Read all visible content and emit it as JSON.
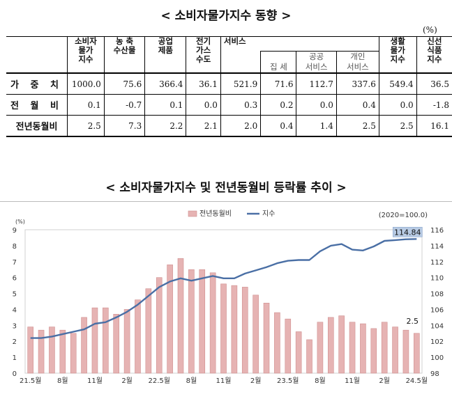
{
  "title1": "< 소비자물가지수 동향 >",
  "unit": "(%)",
  "table": {
    "col_headers": [
      "소비자\n물가\n지수",
      "농 축\n수산물",
      "공업\n제품",
      "전기\n가스\n수도",
      "서비스",
      "생활\n물가\n지수",
      "신선\n식품\n지수"
    ],
    "service_sub": [
      "집 세",
      "공공\n서비스",
      "개인\n서비스"
    ],
    "rows": [
      {
        "label": "가 중 치",
        "values": [
          "1000.0",
          "75.6",
          "366.4",
          "36.1",
          "521.9",
          "71.6",
          "112.7",
          "337.6",
          "549.4",
          "36.5"
        ]
      },
      {
        "label": "전 월 비",
        "values": [
          "0.1",
          "-0.7",
          "0.1",
          "0.0",
          "0.3",
          "0.2",
          "0.0",
          "0.4",
          "0.0",
          "-1.8"
        ]
      },
      {
        "label": "전년동월비",
        "values": [
          "2.5",
          "7.3",
          "2.2",
          "2.1",
          "2.0",
          "0.4",
          "1.4",
          "2.5",
          "2.5",
          "16.1"
        ]
      }
    ]
  },
  "title2": "< 소비자물가지수 및 전년동월비 등락률 추이 >",
  "chart_data": {
    "type": "bar+line",
    "legend": [
      "전년동월비",
      "지수"
    ],
    "base_note": "(2020=100.0)",
    "left_axis_label": "(%)",
    "left_ylim": [
      0,
      9
    ],
    "left_ticks": [
      "0",
      "1",
      "2",
      "3",
      "4",
      "5",
      "6",
      "7",
      "8",
      "9"
    ],
    "right_ylim": [
      98,
      116
    ],
    "right_ticks": [
      "98",
      "100",
      "102",
      "104",
      "106",
      "108",
      "110",
      "112",
      "114",
      "116"
    ],
    "x_tick_labels": [
      {
        "index": 0,
        "label": "21.5월"
      },
      {
        "index": 3,
        "label": "8월"
      },
      {
        "index": 6,
        "label": "11월"
      },
      {
        "index": 9,
        "label": "2월"
      },
      {
        "index": 12,
        "label": "22.5월"
      },
      {
        "index": 15,
        "label": "8월"
      },
      {
        "index": 18,
        "label": "11월"
      },
      {
        "index": 21,
        "label": "2월"
      },
      {
        "index": 24,
        "label": "23.5월"
      },
      {
        "index": 27,
        "label": "8월"
      },
      {
        "index": 30,
        "label": "11월"
      },
      {
        "index": 33,
        "label": "2월"
      },
      {
        "index": 36,
        "label": "24.5월"
      }
    ],
    "yoy": [
      2.9,
      2.7,
      2.9,
      2.7,
      2.5,
      3.5,
      4.1,
      4.1,
      3.7,
      4.0,
      4.6,
      5.3,
      6.0,
      6.8,
      7.2,
      6.5,
      6.5,
      6.3,
      5.6,
      5.5,
      5.4,
      4.9,
      4.4,
      3.8,
      3.4,
      2.6,
      2.1,
      3.2,
      3.5,
      3.6,
      3.2,
      3.1,
      2.8,
      3.2,
      2.9,
      2.7,
      2.5
    ],
    "index": [
      102.4,
      102.4,
      102.6,
      102.9,
      103.2,
      103.5,
      104.2,
      104.4,
      105.0,
      105.7,
      106.6,
      107.7,
      108.8,
      109.5,
      109.9,
      109.6,
      109.9,
      110.2,
      109.9,
      109.9,
      110.5,
      110.9,
      111.3,
      111.8,
      112.1,
      112.2,
      112.2,
      113.3,
      114.0,
      114.2,
      113.5,
      113.4,
      113.9,
      114.6,
      114.7,
      114.8,
      114.84
    ],
    "last_yoy_label": "2.5",
    "last_index_label": "114.84"
  }
}
